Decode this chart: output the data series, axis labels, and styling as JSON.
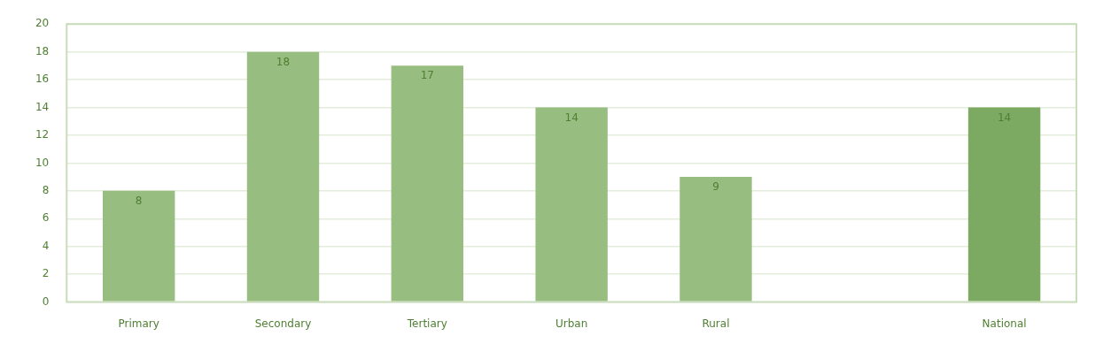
{
  "chart_data": {
    "type": "bar",
    "categories": [
      "Primary",
      "Secondary",
      "Tertiary",
      "Urban",
      "Rural",
      null,
      "National"
    ],
    "values": [
      8,
      18,
      17,
      14,
      9,
      null,
      14
    ],
    "colors": [
      "#98bd80",
      "#98bd80",
      "#98bd80",
      "#98bd80",
      "#98bd80",
      "#98bd80",
      "#7caa62"
    ],
    "ylim": [
      0,
      20
    ],
    "yticks": [
      0,
      2,
      4,
      6,
      8,
      10,
      12,
      14,
      16,
      18,
      20
    ],
    "grid": "y",
    "legend": false,
    "data_labels": true
  }
}
